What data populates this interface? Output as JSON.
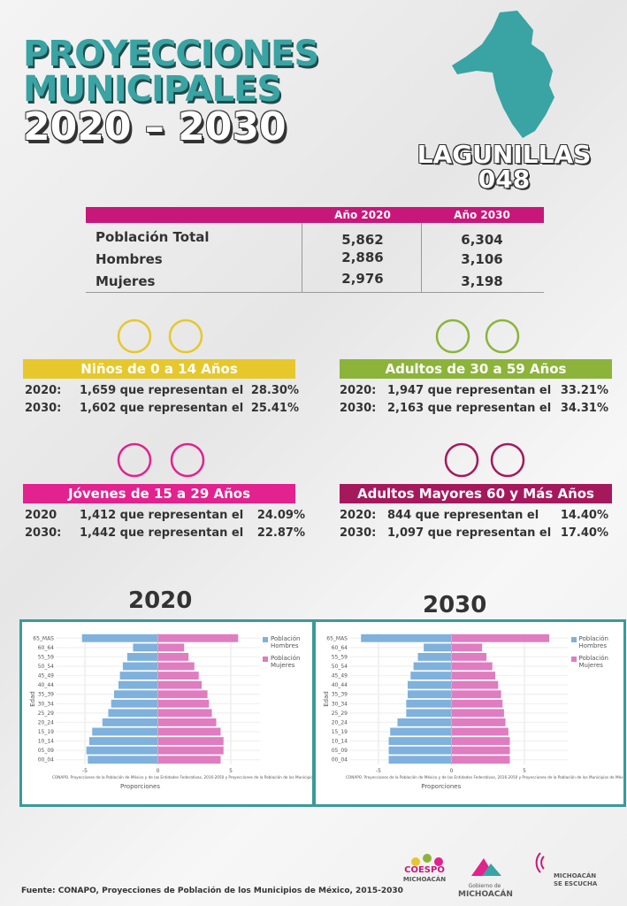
{
  "header": {
    "title_lines": [
      "PROYECCIONES",
      "MUNICIPALES"
    ],
    "years": "2020 – 2030",
    "municipality": "LAGUNILLAS",
    "code": "048"
  },
  "table": {
    "columns": [
      "Año 2020",
      "Año 2030"
    ],
    "rows": [
      {
        "label": "Población Total",
        "values": [
          "5,862",
          "6,304"
        ]
      },
      {
        "label": "Hombres",
        "values": [
          "2,886",
          "3,106"
        ]
      },
      {
        "label": "Mujeres",
        "values": [
          "2,976",
          "3,198"
        ]
      }
    ]
  },
  "groups": [
    {
      "title": "Niños de 0 a 14 Años",
      "color": "#e6c82c",
      "lines": [
        {
          "year": "2020:",
          "text": "1,659 que representan el",
          "pct": "28.30%"
        },
        {
          "year": "2030:",
          "text": "1,602 que representan el",
          "pct": "25.41%"
        }
      ]
    },
    {
      "title": "Adultos de 30 a 59 Años",
      "color": "#8cb43a",
      "lines": [
        {
          "year": "2020:",
          "text": "1,947 que representan el",
          "pct": "33.21%"
        },
        {
          "year": "2030:",
          "text": "2,163 que representan el",
          "pct": "34.31%"
        }
      ]
    },
    {
      "title": "Jóvenes de 15 a 29 Años",
      "color": "#e2228e",
      "lines": [
        {
          "year": "2020",
          "text": "1,412 que representan el",
          "pct": "24.09%"
        },
        {
          "year": "2030:",
          "text": "1,442 que representan el",
          "pct": "22.87%"
        }
      ]
    },
    {
      "title": "Adultos Mayores  60 y Más Años",
      "color": "#a5195c",
      "lines": [
        {
          "year": "2020:",
          "text": "844 que representan el",
          "pct": "14.40%"
        },
        {
          "year": "2030:",
          "text": "1,097 que representan el",
          "pct": "17.40%"
        }
      ]
    }
  ],
  "charts": [
    {
      "type": "bar",
      "title": "2020",
      "categories": [
        "65_MAS",
        "60_64",
        "55_59",
        "50_54",
        "45_49",
        "40_44",
        "35_39",
        "30_34",
        "25_29",
        "20_24",
        "15_19",
        "10_14",
        "05_09",
        "00_04"
      ],
      "series": [
        {
          "name": "Población Hombres",
          "color": "#7fb1dc",
          "values": [
            -5.2,
            -1.7,
            -2.1,
            -2.4,
            -2.6,
            -2.7,
            -3.0,
            -3.2,
            -3.4,
            -3.8,
            -4.5,
            -4.7,
            -4.9,
            -4.8
          ]
        },
        {
          "name": "Población Mujeres",
          "color": "#e07cc0",
          "values": [
            5.5,
            1.8,
            2.1,
            2.5,
            2.8,
            3.0,
            3.4,
            3.5,
            3.7,
            4.0,
            4.3,
            4.5,
            4.5,
            4.3
          ]
        }
      ],
      "xlim": [
        -7,
        7
      ],
      "xticks": [
        -5,
        0,
        5
      ],
      "xlabel": "Proporciones",
      "ylabel": "Edad",
      "grid": true,
      "note": "CONAPO. Proyecciones de la Población de México y de las Entidades Federativas, 2016-2050 y Proyecciones de la Población de los Municipios de Méx"
    },
    {
      "type": "bar",
      "title": "2030",
      "categories": [
        "65_MAS",
        "60_64",
        "55_59",
        "50_54",
        "45_49",
        "40_44",
        "35_39",
        "30_34",
        "25_29",
        "20_24",
        "15_19",
        "10_14",
        "05_09",
        "00_04"
      ],
      "series": [
        {
          "name": "Población Hombres",
          "color": "#7fb1dc",
          "values": [
            -6.2,
            -1.9,
            -2.3,
            -2.6,
            -2.8,
            -3.0,
            -3.0,
            -3.1,
            -3.1,
            -3.7,
            -4.2,
            -4.3,
            -4.3,
            -4.3
          ]
        },
        {
          "name": "Población Mujeres",
          "color": "#e07cc0",
          "values": [
            6.7,
            2.1,
            2.4,
            2.8,
            3.0,
            3.2,
            3.4,
            3.5,
            3.6,
            3.7,
            3.9,
            4.0,
            4.0,
            4.0
          ]
        }
      ],
      "xlim": [
        -7,
        8
      ],
      "xticks": [
        -5,
        0,
        5
      ],
      "xlabel": "Proporciones",
      "ylabel": "Edad",
      "grid": true,
      "note": "CONAPO. Proyecciones de la Población de México y de las Entidades Federativas, 2016-2050 y Proyecciones de la Población de los Municipios de Méx"
    }
  ],
  "footer": {
    "source": "Fuente: CONAPO, Proyecciones de Población de los Municipios de México, 2015-2030",
    "logos": [
      "COESPO",
      "MICHOACÁN",
      "Gobierno de",
      "MICHOACÁN",
      "MICHOACÁN",
      "SE ESCUCHA"
    ]
  }
}
